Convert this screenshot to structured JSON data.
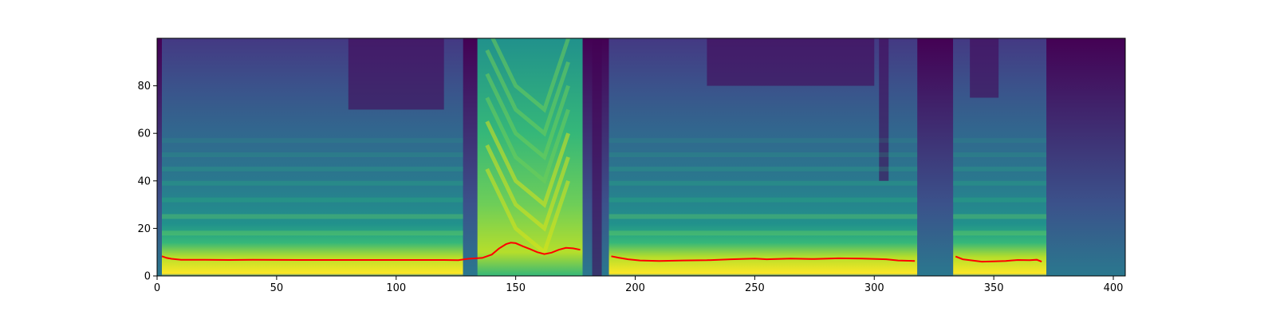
{
  "chart_data": {
    "type": "heatmap",
    "title": "",
    "xlabel": "",
    "ylabel": "",
    "xlim": [
      0,
      405
    ],
    "ylim": [
      0,
      100
    ],
    "grid": false,
    "colormap": "viridis",
    "x_ticks": [
      {
        "value": 0,
        "label": "0"
      },
      {
        "value": 50,
        "label": "50"
      },
      {
        "value": 100,
        "label": "100"
      },
      {
        "value": 150,
        "label": "150"
      },
      {
        "value": 200,
        "label": "200"
      },
      {
        "value": 250,
        "label": "250"
      },
      {
        "value": 300,
        "label": "300"
      },
      {
        "value": 350,
        "label": "350"
      },
      {
        "value": 400,
        "label": "400"
      }
    ],
    "y_ticks": [
      {
        "value": 0,
        "label": "0"
      },
      {
        "value": 20,
        "label": "20"
      },
      {
        "value": 40,
        "label": "40"
      },
      {
        "value": 60,
        "label": "60"
      },
      {
        "value": 80,
        "label": "80"
      }
    ],
    "series": [
      {
        "color": "#ff0000",
        "segments": [
          [
            [
              2,
              8.3
            ],
            [
              4,
              7.6
            ],
            [
              6,
              7.2
            ],
            [
              10,
              6.8
            ],
            [
              20,
              6.8
            ],
            [
              30,
              6.7
            ],
            [
              40,
              6.8
            ],
            [
              60,
              6.7
            ],
            [
              80,
              6.7
            ],
            [
              100,
              6.7
            ],
            [
              120,
              6.7
            ],
            [
              126,
              6.6
            ],
            [
              130,
              7.2
            ],
            [
              136,
              7.6
            ],
            [
              140,
              9
            ],
            [
              143,
              11.5
            ],
            [
              146,
              13.4
            ],
            [
              148,
              14
            ],
            [
              150,
              13.8
            ],
            [
              153,
              12.5
            ],
            [
              156,
              11.3
            ],
            [
              159,
              10
            ],
            [
              162,
              9.2
            ],
            [
              165,
              9.8
            ],
            [
              168,
              11
            ],
            [
              171,
              11.8
            ],
            [
              174,
              11.6
            ],
            [
              177,
              11
            ]
          ],
          [
            [
              190,
              8.3
            ],
            [
              193,
              7.7
            ],
            [
              197,
              7
            ],
            [
              202,
              6.5
            ],
            [
              210,
              6.3
            ],
            [
              220,
              6.5
            ],
            [
              230,
              6.6
            ],
            [
              240,
              7
            ],
            [
              250,
              7.3
            ],
            [
              255,
              7
            ],
            [
              265,
              7.3
            ],
            [
              275,
              7.1
            ],
            [
              285,
              7.4
            ],
            [
              295,
              7.3
            ],
            [
              305,
              7
            ],
            [
              310,
              6.5
            ],
            [
              317,
              6.3
            ]
          ],
          [
            [
              334,
              8.2
            ],
            [
              337,
              7
            ],
            [
              341,
              6.5
            ],
            [
              345,
              6
            ],
            [
              350,
              6.1
            ],
            [
              355,
              6.3
            ],
            [
              360,
              6.7
            ],
            [
              365,
              6.6
            ],
            [
              368,
              6.8
            ],
            [
              370,
              6
            ]
          ]
        ]
      }
    ]
  }
}
